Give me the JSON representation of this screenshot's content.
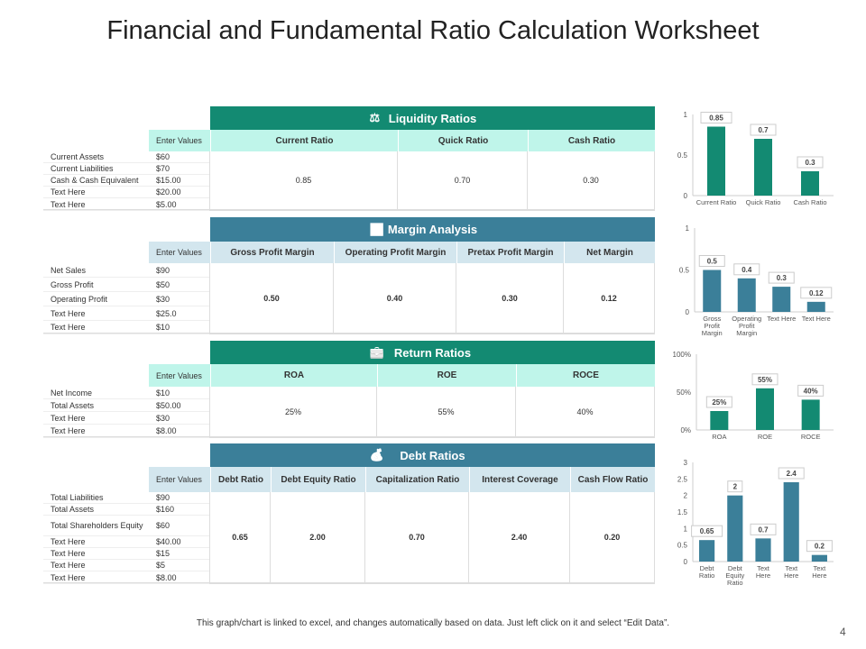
{
  "title": "Financial and Fundamental Ratio Calculation Worksheet",
  "colors": {
    "green": "#138A72",
    "green_light": "#BFF5EA",
    "blue": "#3B7F99",
    "blue_light": "#D3E6EE"
  },
  "sections": [
    {
      "id": "liquidity",
      "title": "Liquidity Ratios",
      "icon": "scale-coins-icon",
      "theme": "green",
      "enter_label": "Enter Values",
      "columns": [
        "Current Ratio",
        "Quick Ratio",
        "Cash Ratio"
      ],
      "inputs": [
        {
          "label": "Current Assets",
          "value": "$60"
        },
        {
          "label": "Current Liabilities",
          "value": "$70"
        },
        {
          "label": "Cash & Cash Equivalent",
          "value": "$15.00"
        },
        {
          "label": "Text Here",
          "value": "$20.00"
        },
        {
          "label": "Text Here",
          "value": "$5.00"
        }
      ],
      "results": [
        "0.85",
        "0.70",
        "0.30"
      ]
    },
    {
      "id": "margin",
      "title": "Margin Analysis",
      "icon": "growth-chart-icon",
      "theme": "blue",
      "enter_label": "Enter Values",
      "columns": [
        "Gross Profit Margin",
        "Operating Profit Margin",
        "Pretax Profit Margin",
        "Net Margin"
      ],
      "inputs": [
        {
          "label": "Net Sales",
          "value": "$90"
        },
        {
          "label": "Gross Profit",
          "value": "$50"
        },
        {
          "label": "Operating Profit",
          "value": "$30"
        },
        {
          "label": "Text Here",
          "value": "$25.0"
        },
        {
          "label": "Text Here",
          "value": "$10"
        }
      ],
      "results": [
        "0.50",
        "0.40",
        "0.30",
        "0.12"
      ]
    },
    {
      "id": "return",
      "title": "Return Ratios",
      "icon": "briefcase-dollar-icon",
      "theme": "green",
      "enter_label": "Enter Values",
      "columns": [
        "ROA",
        "ROE",
        "ROCE"
      ],
      "inputs": [
        {
          "label": "Net Income",
          "value": "$10"
        },
        {
          "label": "Total Assets",
          "value": "$50.00"
        },
        {
          "label": "Text Here",
          "value": "$30"
        },
        {
          "label": "Text Here",
          "value": "$8.00"
        }
      ],
      "results": [
        "25%",
        "55%",
        "40%"
      ]
    },
    {
      "id": "debt",
      "title": "Debt Ratios",
      "icon": "money-bag-icon",
      "theme": "blue",
      "enter_label": "Enter Values",
      "columns": [
        "Debt Ratio",
        "Debt Equity Ratio",
        "Capitalization Ratio",
        "Interest Coverage",
        "Cash Flow Ratio"
      ],
      "inputs": [
        {
          "label": "Total Liabilities",
          "value": "$90"
        },
        {
          "label": "Total Assets",
          "value": "$160"
        },
        {
          "label": "Total Shareholders Equity",
          "value": "$60"
        },
        {
          "label": "Text Here",
          "value": "$40.00"
        },
        {
          "label": "Text Here",
          "value": "$15"
        },
        {
          "label": "Text Here",
          "value": "$5"
        },
        {
          "label": "Text Here",
          "value": "$8.00"
        }
      ],
      "results": [
        "0.65",
        "2.00",
        "0.70",
        "2.40",
        "0.20"
      ]
    }
  ],
  "chart_data": [
    {
      "type": "bar",
      "categories": [
        "Current Ratio",
        "Quick Ratio",
        "Cash Ratio"
      ],
      "values": [
        0.85,
        0.7,
        0.3
      ],
      "labels": [
        "0.85",
        "0.7",
        "0.3"
      ],
      "yticks": [
        "0",
        "0.5",
        "1"
      ],
      "ylim": [
        0,
        1
      ],
      "color": "#138A72",
      "grid": false
    },
    {
      "type": "bar",
      "categories": [
        "Gross Profit Margin",
        "Operating Profit Margin",
        "Text Here",
        "Text Here"
      ],
      "values": [
        0.5,
        0.4,
        0.3,
        0.12
      ],
      "labels": [
        "0.5",
        "0.4",
        "0.3",
        "0.12"
      ],
      "yticks": [
        "0",
        "0.5",
        "1"
      ],
      "ylim": [
        0,
        1
      ],
      "color": "#3B7F99",
      "grid": false
    },
    {
      "type": "bar",
      "categories": [
        "ROA",
        "ROE",
        "ROCE"
      ],
      "values": [
        25,
        55,
        40
      ],
      "labels": [
        "25%",
        "55%",
        "40%"
      ],
      "yticks": [
        "0%",
        "50%",
        "100%"
      ],
      "ylim": [
        0,
        100
      ],
      "color": "#138A72",
      "grid": false
    },
    {
      "type": "bar",
      "categories": [
        "Debt Ratio",
        "Debt Equity Ratio",
        "Text Here",
        "Text Here",
        "Text Here"
      ],
      "values": [
        0.65,
        2,
        0.7,
        2.4,
        0.2
      ],
      "labels": [
        "0.65",
        "2",
        "0.7",
        "2.4",
        "0.2"
      ],
      "yticks": [
        "0",
        "0.5",
        "1",
        "1.5",
        "2",
        "2.5",
        "3"
      ],
      "ylim": [
        0,
        3
      ],
      "color": "#3B7F99",
      "grid": false
    }
  ],
  "footer": "This graph/chart is linked to excel, and changes automatically based on data. Just left click on it and select “Edit Data”.",
  "page_number": "4"
}
